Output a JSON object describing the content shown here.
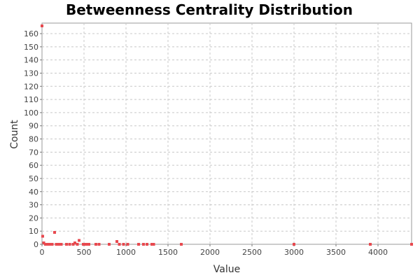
{
  "chart_data": {
    "type": "scatter",
    "title": "Betweenness Centrality Distribution",
    "xlabel": "Value",
    "ylabel": "Count",
    "xlim": [
      0,
      4400
    ],
    "ylim": [
      0,
      168
    ],
    "x_ticks": [
      0,
      500,
      1000,
      1500,
      2000,
      2500,
      3000,
      3500,
      4000
    ],
    "y_ticks": [
      0,
      10,
      20,
      30,
      40,
      50,
      60,
      70,
      80,
      90,
      100,
      110,
      120,
      130,
      140,
      150,
      160
    ],
    "grid": true,
    "legend": "none",
    "marker_color": "#e8494f",
    "points": [
      {
        "x": 0,
        "y": 166
      },
      {
        "x": 10,
        "y": 6
      },
      {
        "x": 20,
        "y": 1
      },
      {
        "x": 40,
        "y": 0
      },
      {
        "x": 60,
        "y": 0
      },
      {
        "x": 90,
        "y": 0
      },
      {
        "x": 120,
        "y": 0
      },
      {
        "x": 150,
        "y": 9
      },
      {
        "x": 170,
        "y": 0
      },
      {
        "x": 200,
        "y": 0
      },
      {
        "x": 230,
        "y": 0
      },
      {
        "x": 290,
        "y": 0
      },
      {
        "x": 330,
        "y": 0
      },
      {
        "x": 370,
        "y": 0
      },
      {
        "x": 390,
        "y": 1
      },
      {
        "x": 420,
        "y": 0
      },
      {
        "x": 440,
        "y": 3
      },
      {
        "x": 490,
        "y": 0
      },
      {
        "x": 510,
        "y": 0
      },
      {
        "x": 530,
        "y": 0
      },
      {
        "x": 560,
        "y": 0
      },
      {
        "x": 640,
        "y": 0
      },
      {
        "x": 680,
        "y": 0
      },
      {
        "x": 800,
        "y": 0
      },
      {
        "x": 890,
        "y": 2
      },
      {
        "x": 920,
        "y": 0
      },
      {
        "x": 970,
        "y": 0
      },
      {
        "x": 1020,
        "y": 0
      },
      {
        "x": 1150,
        "y": 0
      },
      {
        "x": 1210,
        "y": 0
      },
      {
        "x": 1250,
        "y": 0
      },
      {
        "x": 1310,
        "y": 0
      },
      {
        "x": 1330,
        "y": 0
      },
      {
        "x": 1660,
        "y": 0
      },
      {
        "x": 3000,
        "y": 0
      },
      {
        "x": 3910,
        "y": 0
      },
      {
        "x": 4400,
        "y": 0
      }
    ]
  }
}
